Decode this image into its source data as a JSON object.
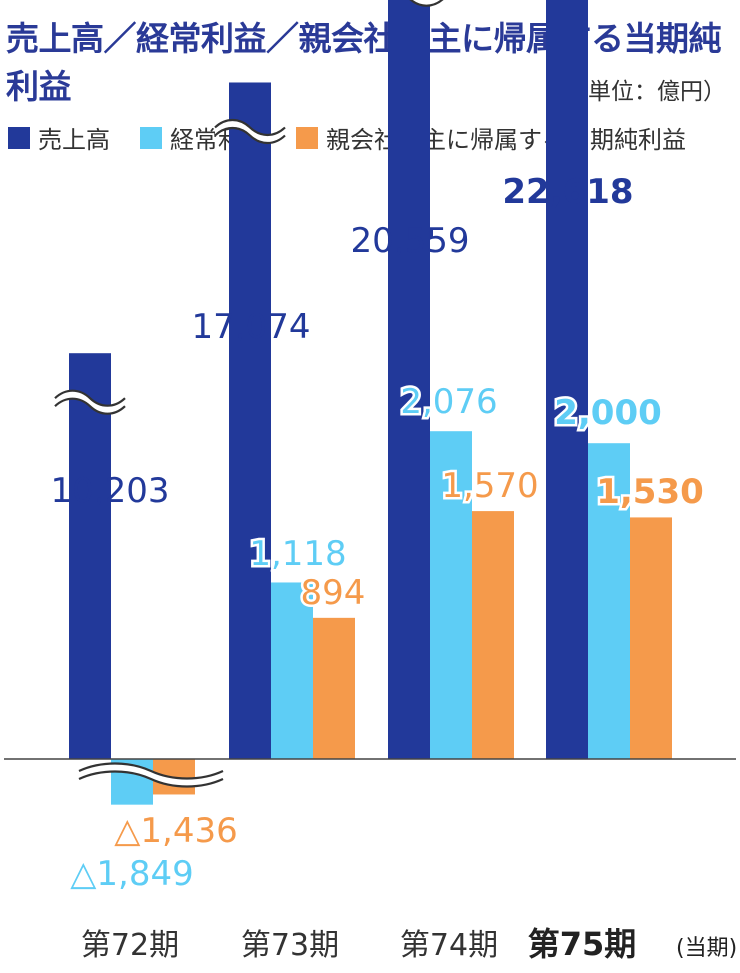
{
  "title": "売上高／経常利益／親会社株主に帰属する当期純利益",
  "unit": "（単位：億円）",
  "colors": {
    "sales": "#22399a",
    "ordinary": "#5ecdf5",
    "net": "#f59a4b",
    "text_dark": "#2a3a97"
  },
  "legend": [
    {
      "label": "売上高",
      "color": "#22399a"
    },
    {
      "label": "経常利益",
      "color": "#5ecdf5"
    },
    {
      "label": "親会社株主に帰属する当期純利益",
      "color": "#f59a4b"
    }
  ],
  "chart_data": {
    "type": "bar",
    "categories": [
      "第72期",
      "第73期",
      "第74期",
      "第75期"
    ],
    "category_note": "(当期)",
    "axis_break": true,
    "series": [
      {
        "name": "売上高",
        "values": [
          10203,
          17074,
          20559,
          22618
        ],
        "labels": [
          "10,203",
          "17,074",
          "20,559",
          "22,618"
        ]
      },
      {
        "name": "経常利益",
        "values": [
          -1849,
          1118,
          2076,
          2000
        ],
        "labels": [
          "△1,849",
          "1,118",
          "2,076",
          "2,000"
        ]
      },
      {
        "name": "親会社株主に帰属する当期純利益",
        "values": [
          -1436,
          894,
          1570,
          1530
        ],
        "labels": [
          "△1,436",
          "894",
          "1,570",
          "1,530"
        ]
      }
    ]
  }
}
